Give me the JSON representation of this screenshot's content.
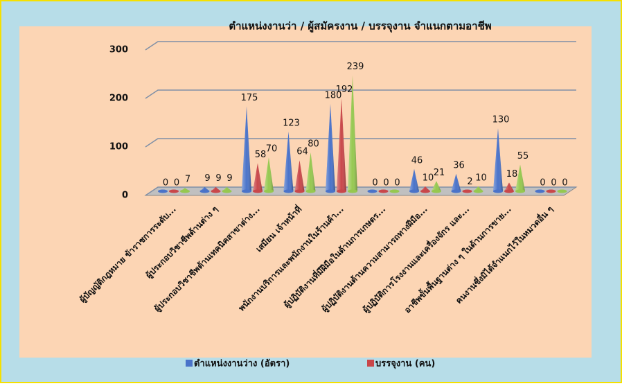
{
  "chart_data": {
    "type": "cone",
    "title": "ตำแหน่งงานว่า / ผู้สมัครงาน / บรรจุงาน จำแนกตามอาชีพ",
    "categories": [
      "ผู้บัญญัติกฎหมาย ข้าราชการระดับ...",
      "ผู้ประกอบวิชาชีพด้านต่าง ๆ",
      "ผู้ประกอบวิชาชีพด้านเทคนิคสาขาต่าง...",
      "เสมียน เจ้าหน้าที่",
      "พนักงานบริการและพนักงานในร้านค้า...",
      "ผู้ปฏิบัติงานที่มีฝีมือในด้านการเกษตร...",
      "ผู้ปฏิบัติงานด้านความสามารถทางฝีมือ...",
      "ผู้ปฏิบัติการโรงงานและเครื่องจักร และ...",
      "อาชีพขั้นพื้นฐานต่าง ๆ ในด้านการขาย...",
      "คนงานซึ่งมิได้จำแนกไว้ในหมวดอื่น ๆ"
    ],
    "series": [
      {
        "name": "ตำแหน่งงานว่าง (อัตรา)",
        "color": "#4a73c9",
        "values": [
          0,
          9,
          175,
          123,
          180,
          0,
          46,
          36,
          130,
          0
        ]
      },
      {
        "name": "บรรจุงาน (คน)",
        "color": "#c9474a",
        "values": [
          0,
          9,
          58,
          64,
          192,
          0,
          10,
          2,
          18,
          0
        ]
      },
      {
        "color": "#96c850",
        "values": [
          7,
          9,
          70,
          80,
          239,
          0,
          21,
          10,
          55,
          0
        ]
      }
    ],
    "ylim": [
      0,
      300
    ],
    "yticks": [
      0,
      100,
      200,
      300
    ],
    "grid": true
  }
}
